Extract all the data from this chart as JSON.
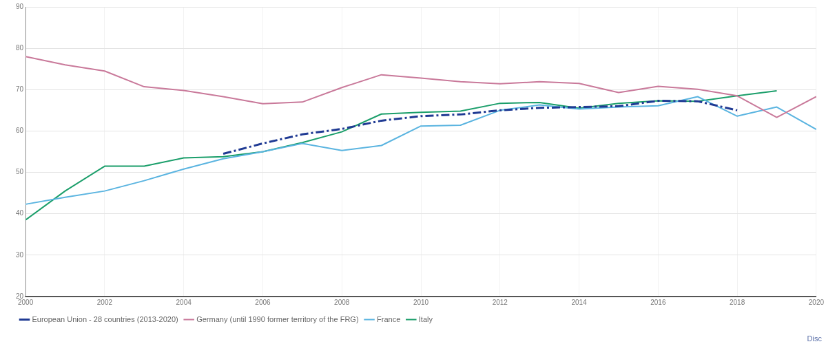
{
  "chart_data": {
    "type": "line",
    "x": [
      2000,
      2001,
      2002,
      2003,
      2004,
      2005,
      2006,
      2007,
      2008,
      2009,
      2010,
      2011,
      2012,
      2013,
      2014,
      2015,
      2016,
      2017,
      2018,
      2019,
      2020
    ],
    "series": [
      {
        "name": "European Union - 28 countries (2013-2020)",
        "color": "#1f3a93",
        "line_style": "dashed",
        "values": [
          null,
          null,
          null,
          null,
          null,
          54.5,
          57,
          59.2,
          60.5,
          62.5,
          63.6,
          64,
          65,
          65.6,
          65.8,
          66,
          67.3,
          67.2,
          65,
          null,
          null
        ]
      },
      {
        "name": "Germany (until 1990 former territory of the FRG)",
        "color": "#c9799a",
        "values": [
          78,
          76,
          74.5,
          70.7,
          69.8,
          68.3,
          66.6,
          67,
          70.5,
          73.6,
          72.8,
          71.9,
          71.4,
          71.9,
          71.5,
          69.3,
          70.8,
          70.1,
          68.5,
          63.3,
          68.3
        ]
      },
      {
        "name": "France",
        "color": "#5ab4e0",
        "values": [
          42.3,
          44,
          45.5,
          48,
          50.8,
          53.3,
          55,
          57,
          55.3,
          56.5,
          61.2,
          61.4,
          65,
          66.3,
          65.3,
          65.8,
          66.1,
          68.3,
          63.6,
          65.8,
          60.4
        ]
      },
      {
        "name": "Italy",
        "color": "#1a9e6a",
        "values": [
          38.5,
          45.5,
          51.5,
          51.5,
          53.5,
          53.8,
          55,
          57.2,
          59.8,
          64.1,
          64.5,
          64.8,
          66.7,
          66.9,
          65.5,
          66.7,
          67.3,
          67.2,
          68.5,
          69.7,
          null
        ]
      }
    ],
    "xlim": [
      2000,
      2020
    ],
    "xticks": [
      2000,
      2002,
      2004,
      2006,
      2008,
      2010,
      2012,
      2014,
      2016,
      2018,
      2020
    ],
    "ylim": [
      20,
      90
    ],
    "yticks": [
      20,
      30,
      40,
      50,
      60,
      70,
      80,
      90
    ],
    "grid": true,
    "legend": "bottom",
    "marker": "none",
    "line_style": "solid",
    "annotations": [
      "Disc"
    ]
  }
}
